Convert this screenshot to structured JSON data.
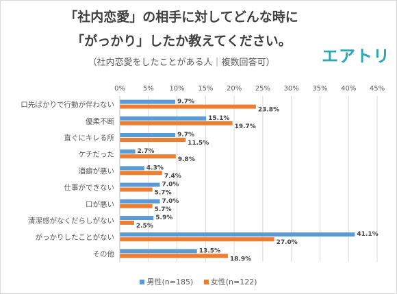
{
  "header": {
    "title_line1": "「社内恋愛」の相手に対してどんな時に",
    "title_line2": "「がっかり」したか教えてください。",
    "subtitle": "（社内恋愛をしたことがある人｜複数回答可）",
    "logo": "エアトリ"
  },
  "colors": {
    "male": "#5b9bd5",
    "female": "#ed7d31",
    "grid": "#d9d9d9",
    "text": "#595959"
  },
  "chart_data": {
    "type": "bar",
    "orientation": "horizontal",
    "categories": [
      "口先ばかりで行動が伴わない",
      "優柔不断",
      "直ぐにキレる所",
      "ケチだった",
      "酒癖が悪い",
      "仕事ができない",
      "口が悪い",
      "清潔感がなくだらしがない",
      "がっかりしたことがない",
      "その他"
    ],
    "series": [
      {
        "name": "男性(n=185)",
        "values": [
          9.7,
          15.1,
          9.7,
          2.7,
          4.3,
          7.0,
          7.0,
          5.9,
          41.1,
          13.5
        ]
      },
      {
        "name": "女性(n=122)",
        "values": [
          23.8,
          19.7,
          11.5,
          9.8,
          7.4,
          5.7,
          5.7,
          2.5,
          27.0,
          18.9
        ]
      }
    ],
    "xlim": [
      0,
      45
    ],
    "xticks": [
      "0%",
      "5%",
      "10%",
      "15%",
      "20%",
      "25%",
      "30%",
      "35%",
      "40%",
      "45%"
    ],
    "value_format": "percent_1dp",
    "grid": true,
    "legend_position": "bottom"
  }
}
